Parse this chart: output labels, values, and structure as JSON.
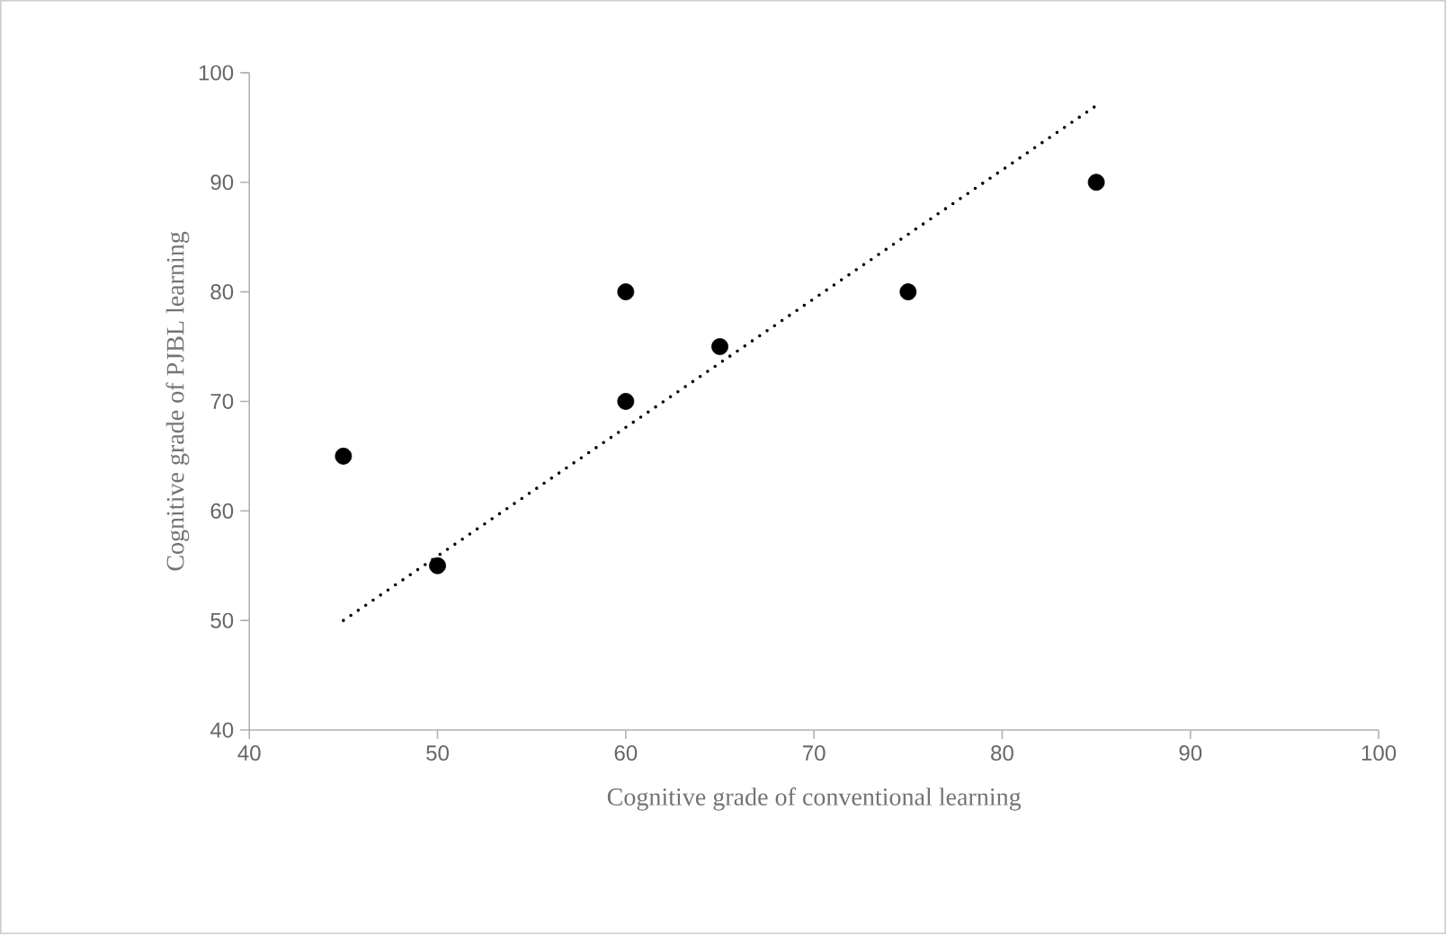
{
  "chart_data": {
    "type": "scatter",
    "xlabel": "Cognitive grade of conventional learning",
    "ylabel": "Cognitive grade of PJBL learning",
    "xlim": [
      40,
      100
    ],
    "xticks": [
      40,
      50,
      60,
      70,
      80,
      90,
      100
    ],
    "ylim": [
      40,
      100
    ],
    "yticks": [
      40,
      50,
      60,
      70,
      80,
      90,
      100
    ],
    "marker": "circle",
    "grid": false,
    "series": [
      {
        "type": "scatter",
        "color": "#000000",
        "x": [
          45,
          50,
          60,
          60,
          65,
          75,
          85
        ],
        "values": [
          65,
          55,
          80,
          70,
          75,
          80,
          90
        ]
      },
      {
        "type": "line",
        "color": "#000000",
        "line_style": "dotted",
        "marker": "none",
        "x": [
          45,
          85
        ],
        "values": [
          50,
          97
        ]
      }
    ]
  }
}
